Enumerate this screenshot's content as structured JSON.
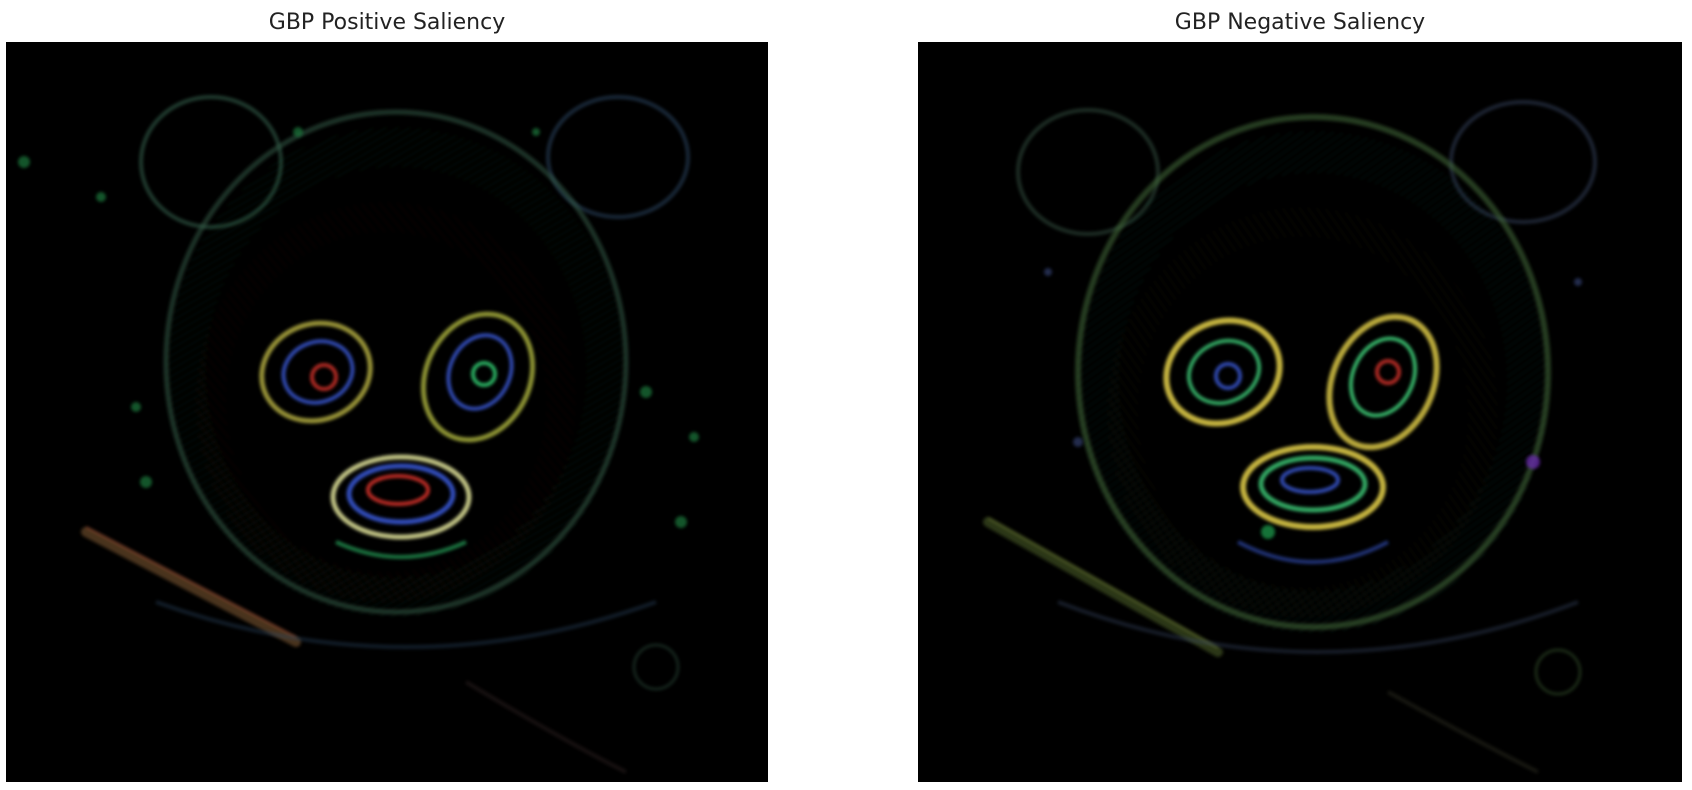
{
  "panels": [
    {
      "id": "positive",
      "title": "GBP Positive Saliency",
      "background_color": "#000000",
      "highlight_colors": [
        "#2fbf6a",
        "#d9342b",
        "#3b5bd9",
        "#e0d84a"
      ]
    },
    {
      "id": "negative",
      "title": "GBP Negative Saliency",
      "background_color": "#000000",
      "highlight_colors": [
        "#3fd07a",
        "#e6d24a",
        "#3b5bd9",
        "#d9342b",
        "#8a3ad9"
      ]
    }
  ]
}
